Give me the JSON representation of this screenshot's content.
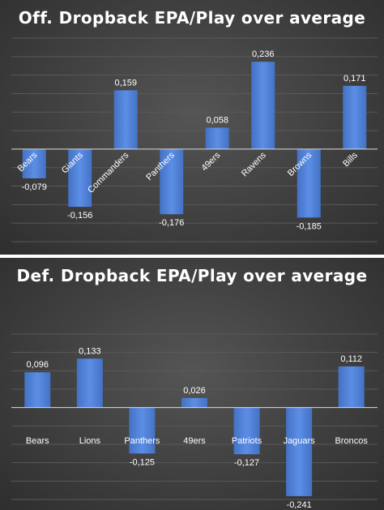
{
  "colors": {
    "bar": "#4472c4",
    "bar_light": "#5b8ee6",
    "grid": "#595959",
    "axis": "#d9d9d9",
    "text": "#ffffff"
  },
  "chart_data": [
    {
      "type": "bar",
      "title": "Off. Dropback EPA/Play over average",
      "categories": [
        "Bears",
        "Giants",
        "Commanders",
        "Panthers",
        "49ers",
        "Ravens",
        "Browns",
        "Bills"
      ],
      "values": [
        -0.079,
        -0.156,
        0.159,
        -0.176,
        0.058,
        0.236,
        -0.185,
        0.171
      ],
      "value_labels": [
        "-0,079",
        "-0,156",
        "0,159",
        "-0,176",
        "0,058",
        "0,236",
        "-0,185",
        "0,171"
      ],
      "ylim": [
        -0.25,
        0.3
      ],
      "grid": true,
      "legend": "none",
      "tick_label_rotation": -45
    },
    {
      "type": "bar",
      "title": "Def. Dropback EPA/Play over average",
      "categories": [
        "Bears",
        "Lions",
        "Panthers",
        "49ers",
        "Patriots",
        "Jaguars",
        "Broncos"
      ],
      "values": [
        0.096,
        0.133,
        -0.125,
        0.026,
        -0.127,
        -0.241,
        0.112
      ],
      "value_labels": [
        "0,096",
        "0,133",
        "-0,125",
        "0,026",
        "-0,127",
        "-0,241",
        "0,112"
      ],
      "ylim": [
        -0.25,
        0.2
      ],
      "grid": true,
      "legend": "none",
      "tick_label_rotation": 0
    }
  ]
}
